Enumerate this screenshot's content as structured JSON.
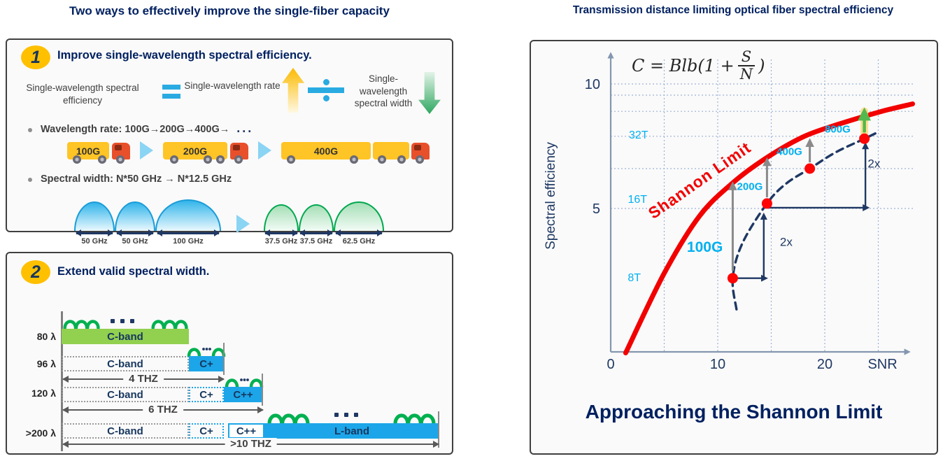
{
  "titles": {
    "left": "Two ways to effectively improve the single-fiber capacity",
    "right": "Transmission distance limiting optical fiber spectral efficiency"
  },
  "colors": {
    "navy": "#002060",
    "dark_navy": "#1F3864",
    "cyan": "#00B0F0",
    "bar_cyan": "#1CA6E9",
    "green": "#00B050",
    "light_green": "#92D050",
    "gold": "#FFC000",
    "red": "#F20000",
    "gray": "#8a8a8a"
  },
  "box1": {
    "badge": "1",
    "heading": "Improve single-wavelength spectral efficiency.",
    "equation": {
      "term1": "Single-wavelength spectral efficiency",
      "term2": "Single-wavelength rate",
      "term3": "Single-wavelength spectral width"
    },
    "bullets": [
      {
        "text": "Wavelength rate: 100G→200G→400G→",
        "suffix": "..."
      },
      {
        "text": "Spectral width: N*50 GHz → N*12.5 GHz"
      }
    ],
    "trucks": [
      {
        "label": "100G"
      },
      {
        "label": "200G"
      },
      {
        "label": "400G"
      }
    ],
    "spectra": {
      "blue": [
        {
          "width_label": "50 GHz"
        },
        {
          "width_label": "50 GHz"
        },
        {
          "width_label": "100 GHz"
        }
      ],
      "green": [
        {
          "width_label": "37.5 GHz"
        },
        {
          "width_label": "37.5 GHz"
        },
        {
          "width_label": "62.5 GHz"
        }
      ]
    }
  },
  "box2": {
    "badge": "2",
    "heading": "Extend valid spectral width.",
    "rows": [
      {
        "lambda": "80 λ",
        "bands": [
          "C-band"
        ]
      },
      {
        "lambda": "96 λ",
        "bands": [
          "C-band",
          "C+"
        ],
        "span": "4 THZ"
      },
      {
        "lambda": "120 λ",
        "bands": [
          "C-band",
          "C+",
          "C++"
        ],
        "span": "6 THZ"
      },
      {
        "lambda": ">200 λ",
        "bands": [
          "C-band",
          "C+",
          "C++",
          "L-band"
        ],
        "span": ">10 THZ"
      }
    ]
  },
  "chart_data": {
    "type": "line",
    "title": "Approaching the Shannon Limit",
    "xlabel": "SNR",
    "ylabel": "Spectral efficiency",
    "xlim": [
      0,
      28
    ],
    "ylim": [
      0,
      11
    ],
    "grid": true,
    "x_ticks": [
      {
        "snr": 0,
        "label": "0"
      },
      {
        "snr": 10,
        "label": "10"
      },
      {
        "snr": 20,
        "label": "20"
      }
    ],
    "y_ticks": [
      {
        "se": 10,
        "label": "10"
      },
      {
        "se": 5,
        "label": "5"
      }
    ],
    "capacity_labels": [
      {
        "snr": 2.6,
        "se": 7.95,
        "label": "32T"
      },
      {
        "snr": 2.5,
        "se": 5.37,
        "label": "16T"
      },
      {
        "snr": 2.2,
        "se": 2.22,
        "label": "8T"
      }
    ],
    "x_gridlines": [
      5,
      10,
      15,
      20,
      25
    ],
    "y_gridlines_se": [
      10,
      9.55,
      8.9,
      7.9,
      6.6,
      5
    ],
    "formula": {
      "lhs": "C = Blb(1 +",
      "num": "S",
      "den": "N",
      "rhs": ")"
    },
    "shannon_curve": {
      "label": "Shannon Limit",
      "label_pos": [
        8.6,
        5.95
      ],
      "label_rotation": -35,
      "points": [
        [
          1.4,
          -0.8
        ],
        [
          5,
          2.4
        ],
        [
          8.3,
          4.7
        ],
        [
          11.6,
          6.1
        ],
        [
          14.8,
          7.1
        ],
        [
          18.1,
          7.9
        ],
        [
          21.4,
          8.4
        ],
        [
          25.3,
          8.9
        ],
        [
          28.2,
          9.2
        ]
      ]
    },
    "evolution_curve": {
      "style": "dashed",
      "points": [
        [
          11.75,
          0.95
        ],
        [
          11.4,
          2.2
        ],
        [
          12.3,
          3.6
        ],
        [
          14.6,
          5.2
        ],
        [
          16.4,
          6.0
        ],
        [
          18.6,
          6.6
        ],
        [
          21.0,
          7.25
        ],
        [
          23.7,
          7.8
        ],
        [
          24.9,
          8.05
        ]
      ]
    },
    "points": [
      {
        "snr": 11.4,
        "se": 2.2,
        "label": "100G",
        "label_pos": [
          8.8,
          3.26
        ],
        "label_size": 21
      },
      {
        "snr": 14.6,
        "se": 5.2,
        "label": "200G",
        "label_pos": [
          13.0,
          5.75
        ],
        "label_size": 15
      },
      {
        "snr": 18.6,
        "se": 6.6,
        "label": "400G",
        "label_pos": [
          16.7,
          7.15
        ],
        "label_size": 15
      },
      {
        "snr": 23.7,
        "se": 7.8,
        "label": "800G",
        "label_pos": [
          21.2,
          8.05
        ],
        "label_size": 15
      }
    ],
    "gap_arrows": [
      {
        "snr": 11.4,
        "from_se": 2.5,
        "to_se": 5.98,
        "color": "gray"
      },
      {
        "snr": 14.6,
        "from_se": 5.45,
        "to_se": 6.95,
        "color": "gray"
      },
      {
        "snr": 18.6,
        "from_se": 6.85,
        "to_se": 7.72,
        "color": "gray"
      },
      {
        "snr": 23.7,
        "from_se": 8.05,
        "to_se": 8.9,
        "color": "green"
      }
    ],
    "step_arrows": [
      {
        "h": {
          "se": 2.2,
          "from_snr": 11.4,
          "to_snr": 14.5
        },
        "v": {
          "snr": 14.3,
          "from_se": 2.2,
          "to_se": 4.75
        },
        "label": "2x",
        "label_pos": [
          16.4,
          3.5
        ]
      },
      {
        "h": {
          "se": 5.03,
          "from_snr": 14.6,
          "to_snr": 24.0
        },
        "v": {
          "snr": 23.8,
          "from_se": 5.03,
          "to_se": 7.58
        },
        "label": "2x",
        "label_pos": [
          24.6,
          6.65
        ]
      }
    ]
  },
  "caption": "Approaching the Shannon Limit"
}
